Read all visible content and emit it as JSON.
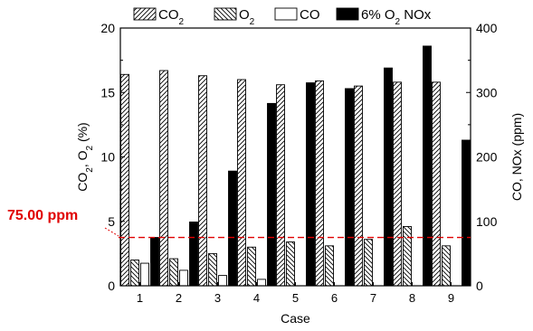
{
  "chart_data": {
    "type": "bar",
    "xlabel": "Case",
    "ylabel_left": [
      "CO",
      "2",
      ", O",
      "2",
      " (%)"
    ],
    "ylabel_right": "CO, NOx (ppm)",
    "categories": [
      "1",
      "2",
      "3",
      "4",
      "5",
      "6",
      "7",
      "8",
      "9"
    ],
    "ylim_left": [
      0,
      20
    ],
    "ylim_right": [
      0,
      400
    ],
    "yticks_left": [
      "0",
      "5",
      "10",
      "15",
      "20"
    ],
    "yticks_right": [
      "0",
      "100",
      "200",
      "300",
      "400"
    ],
    "legend_placement": "top",
    "series": [
      {
        "name": "CO2",
        "label": [
          "CO",
          "2"
        ],
        "axis": "left",
        "pattern": "diag-left",
        "values": [
          16.4,
          16.7,
          16.3,
          16.0,
          15.6,
          15.9,
          15.5,
          15.8,
          15.8
        ]
      },
      {
        "name": "O2",
        "label": [
          "O",
          "2"
        ],
        "axis": "left",
        "pattern": "diag-right",
        "values": [
          2.0,
          2.1,
          2.5,
          3.0,
          3.4,
          3.1,
          3.6,
          4.6,
          3.1
        ]
      },
      {
        "name": "CO",
        "label": [
          "CO"
        ],
        "axis": "right",
        "pattern": "white",
        "values": [
          35,
          24,
          16,
          10,
          0,
          0,
          0,
          0,
          0
        ]
      },
      {
        "name": "6% O2 NOx",
        "label": [
          "6% O",
          "2",
          " NOx"
        ],
        "axis": "right",
        "pattern": "black",
        "values": [
          75,
          99,
          178,
          283,
          315,
          306,
          338,
          372,
          226
        ]
      }
    ],
    "reference_line": {
      "value": 75.0,
      "axis": "right",
      "label": "75.00 ppm",
      "color": "#e00000",
      "style": "dashed"
    }
  }
}
